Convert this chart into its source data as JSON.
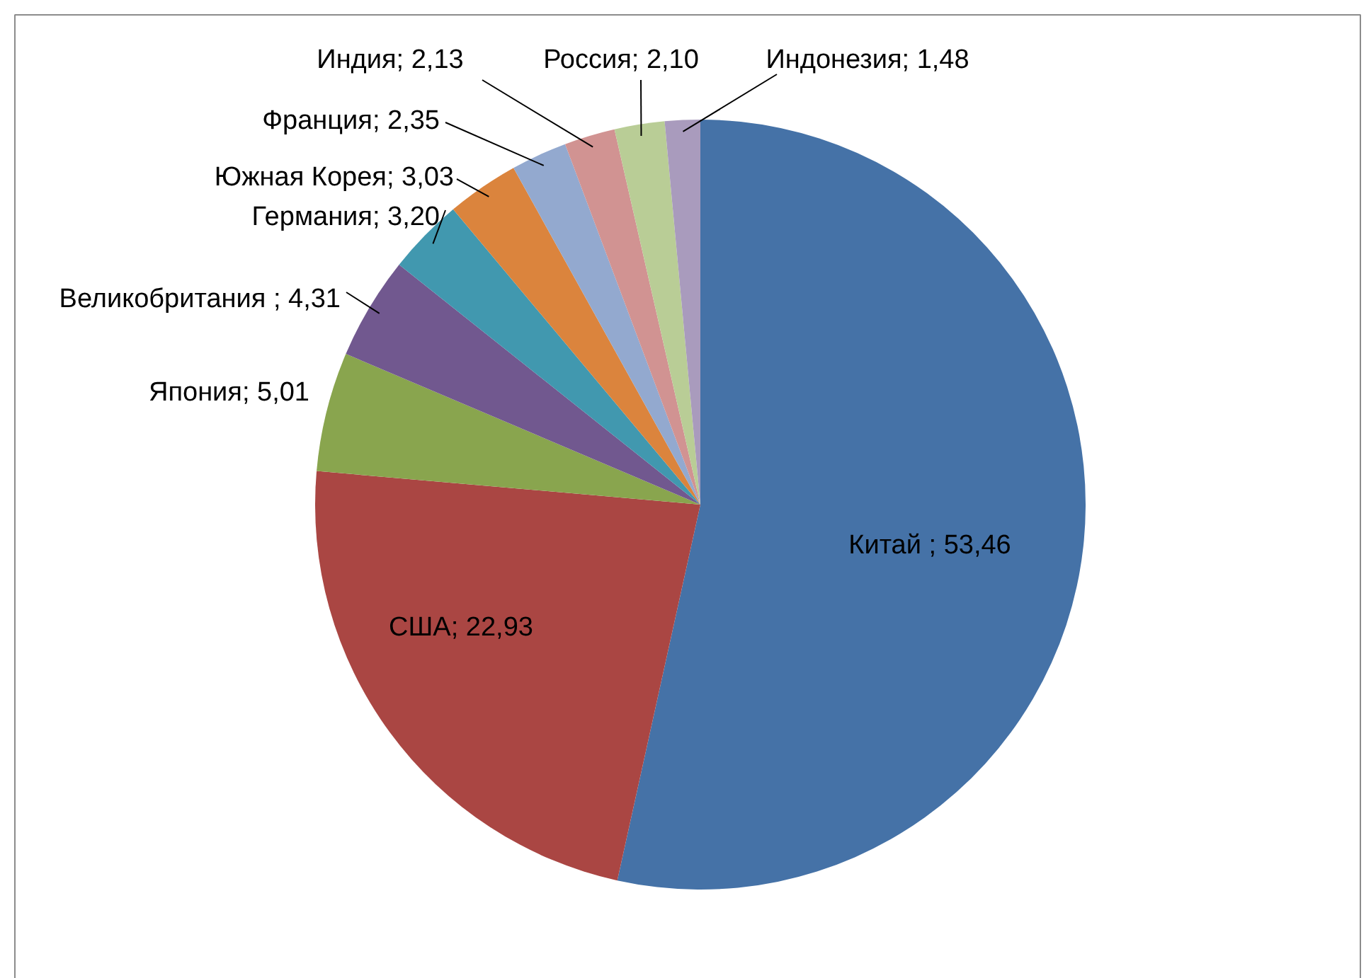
{
  "chart_data": {
    "type": "pie",
    "categories": [
      "Китай ",
      "США",
      "Япония",
      "Великобритания ",
      "Германия",
      "Южная Корея",
      "Франция",
      "Индия",
      "Россия",
      "Индонезия"
    ],
    "values": [
      53.46,
      22.93,
      5.01,
      4.31,
      3.2,
      3.03,
      2.35,
      2.13,
      2.1,
      1.48
    ],
    "value_labels": [
      "53,46",
      "22,93",
      "5,01",
      "4,31",
      "3,20",
      "3,03",
      "2,35",
      "2,13",
      "2,10",
      "1,48"
    ],
    "colors": [
      "#4572a7",
      "#aa4643",
      "#89a54e",
      "#71588f",
      "#4198af",
      "#db843d",
      "#93a9cf",
      "#d19392",
      "#b9cd96",
      "#a99bbd"
    ]
  }
}
